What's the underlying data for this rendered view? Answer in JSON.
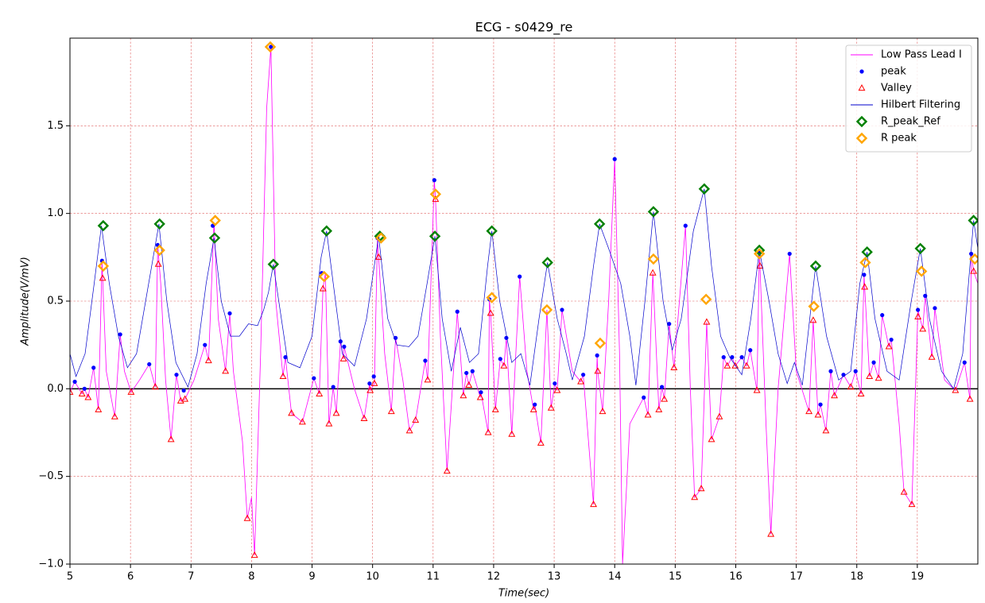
{
  "chart_data": {
    "type": "line",
    "title": "ECG - s0429_re",
    "x_label": "Time(sec)",
    "y_label": "Amplitude(V/mV)",
    "xlim": [
      5,
      20
    ],
    "ylim": [
      -1,
      2
    ],
    "xticks": [
      5,
      6,
      7,
      8,
      9,
      10,
      11,
      12,
      13,
      14,
      15,
      16,
      17,
      18,
      19
    ],
    "yticks": [
      {
        "value": -1,
        "label": "−1.0"
      },
      {
        "value": -0.5,
        "label": "−0.5"
      },
      {
        "value": 0,
        "label": "0.0"
      },
      {
        "value": 0.5,
        "label": "0.5"
      },
      {
        "value": 1,
        "label": "1.0"
      },
      {
        "value": 1.5,
        "label": "1.5"
      }
    ],
    "grid": true,
    "zero_line": true,
    "legend": "upper right",
    "series": [
      {
        "name": "Low Pass Lead I",
        "color": "#ff00ff",
        "style": "line",
        "x": [
          5.0,
          5.08,
          5.2,
          5.24,
          5.3,
          5.39,
          5.47,
          5.53,
          5.54,
          5.6,
          5.74,
          5.83,
          5.9,
          6.01,
          6.15,
          6.31,
          6.41,
          6.45,
          6.5,
          6.58,
          6.67,
          6.76,
          6.83,
          6.9,
          7.05,
          7.23,
          7.29,
          7.38,
          7.45,
          7.57,
          7.64,
          7.7,
          7.85,
          7.93,
          8.0,
          8.05,
          8.15,
          8.25,
          8.32,
          8.4,
          8.52,
          8.56,
          8.66,
          8.84,
          9.03,
          9.12,
          9.18,
          9.22,
          9.28,
          9.35,
          9.4,
          9.47,
          9.52,
          9.53,
          9.7,
          9.86,
          9.95,
          9.96,
          10.03,
          10.08,
          10.1,
          10.2,
          10.31,
          10.38,
          10.5,
          10.61,
          10.71,
          10.87,
          10.91,
          11.02,
          11.04,
          11.12,
          11.23,
          11.4,
          11.5,
          11.55,
          11.59,
          11.65,
          11.78,
          11.79,
          11.91,
          11.93,
          11.95,
          12.03,
          12.11,
          12.17,
          12.21,
          12.3,
          12.43,
          12.55,
          12.66,
          12.68,
          12.78,
          12.88,
          12.95,
          13.01,
          13.05,
          13.13,
          13.3,
          13.44,
          13.48,
          13.65,
          13.71,
          13.72,
          13.8,
          13.9,
          14.0,
          14.08,
          14.13,
          14.25,
          14.48,
          14.55,
          14.63,
          14.73,
          14.78,
          14.82,
          14.9,
          14.98,
          15.17,
          15.25,
          15.32,
          15.43,
          15.52,
          15.6,
          15.73,
          15.8,
          15.86,
          15.94,
          15.99,
          16.1,
          16.18,
          16.24,
          16.35,
          16.39,
          16.4,
          16.5,
          16.58,
          16.7,
          16.89,
          17.0,
          17.21,
          17.28,
          17.36,
          17.4,
          17.49,
          17.57,
          17.63,
          17.78,
          17.9,
          17.98,
          18.07,
          18.12,
          18.13,
          18.21,
          18.28,
          18.36,
          18.42,
          18.53,
          18.57,
          18.7,
          18.78,
          18.91,
          19.01,
          19.09,
          19.13,
          19.24,
          19.29,
          19.45,
          19.63,
          19.78,
          19.87,
          19.89,
          19.93,
          20.0
        ],
        "values": [
          -0.02,
          0.04,
          -0.03,
          0.0,
          -0.05,
          0.12,
          -0.12,
          0.73,
          0.63,
          0.1,
          -0.16,
          0.31,
          0.1,
          -0.02,
          0.05,
          0.14,
          0.01,
          0.82,
          0.6,
          0.05,
          -0.29,
          0.08,
          -0.07,
          -0.06,
          0.05,
          0.25,
          0.16,
          0.95,
          0.4,
          0.1,
          0.43,
          0.1,
          -0.3,
          -0.74,
          -0.62,
          -0.95,
          0.2,
          1.6,
          1.95,
          0.5,
          0.07,
          0.18,
          -0.14,
          -0.19,
          0.06,
          -0.03,
          0.57,
          0.66,
          -0.2,
          0.01,
          -0.14,
          0.27,
          0.17,
          0.24,
          0.0,
          -0.17,
          0.03,
          -0.01,
          0.03,
          0.86,
          0.75,
          0.2,
          -0.13,
          0.29,
          0.05,
          -0.24,
          -0.18,
          0.16,
          0.05,
          1.19,
          1.08,
          0.3,
          -0.47,
          0.44,
          -0.04,
          0.09,
          0.02,
          0.1,
          -0.05,
          -0.02,
          -0.25,
          0.51,
          0.43,
          -0.12,
          0.17,
          0.13,
          0.29,
          -0.26,
          0.64,
          0.1,
          -0.12,
          -0.09,
          -0.31,
          0.45,
          -0.11,
          0.03,
          -0.01,
          0.45,
          0.1,
          0.04,
          0.08,
          -0.66,
          0.19,
          0.1,
          -0.13,
          0.5,
          1.31,
          0.2,
          -1.0,
          -0.2,
          -0.05,
          -0.15,
          0.66,
          -0.12,
          0.01,
          -0.06,
          0.37,
          0.12,
          0.93,
          0.0,
          -0.62,
          -0.57,
          0.38,
          -0.29,
          -0.16,
          0.18,
          0.13,
          0.18,
          0.13,
          0.18,
          0.13,
          0.22,
          -0.01,
          0.78,
          0.7,
          -0.2,
          -0.83,
          0.0,
          0.77,
          0.1,
          -0.13,
          0.39,
          -0.15,
          -0.09,
          -0.24,
          0.1,
          -0.04,
          0.08,
          0.01,
          0.1,
          -0.03,
          0.65,
          0.58,
          0.07,
          0.15,
          0.06,
          0.42,
          0.24,
          0.28,
          -0.2,
          -0.59,
          -0.66,
          0.45,
          0.34,
          0.53,
          0.18,
          0.46,
          0.05,
          -0.01,
          0.15,
          -0.06,
          0.77,
          0.67,
          0.6
        ]
      },
      {
        "name": "peak",
        "color": "#0000ff",
        "style": "scatter",
        "marker": "dot",
        "x": [
          5.08,
          5.24,
          5.39,
          5.53,
          5.83,
          6.31,
          6.45,
          6.76,
          6.88,
          7.23,
          7.36,
          7.64,
          8.32,
          8.56,
          9.03,
          9.16,
          9.35,
          9.47,
          9.53,
          9.95,
          10.02,
          10.08,
          10.38,
          10.87,
          11.02,
          11.4,
          11.55,
          11.65,
          11.79,
          11.93,
          12.11,
          12.21,
          12.43,
          12.68,
          13.01,
          13.13,
          13.48,
          13.71,
          14.0,
          14.48,
          14.78,
          14.9,
          15.17,
          15.8,
          15.94,
          16.1,
          16.24,
          16.39,
          16.89,
          17.4,
          17.57,
          17.78,
          17.98,
          18.12,
          18.28,
          18.42,
          18.57,
          19.01,
          19.13,
          19.29,
          19.78,
          19.89
        ],
        "values": [
          0.04,
          0.0,
          0.12,
          0.73,
          0.31,
          0.14,
          0.82,
          0.08,
          -0.01,
          0.25,
          0.93,
          0.43,
          1.95,
          0.18,
          0.06,
          0.66,
          0.01,
          0.27,
          0.24,
          0.03,
          0.07,
          0.86,
          0.29,
          0.16,
          1.19,
          0.44,
          0.09,
          0.1,
          -0.02,
          0.51,
          0.17,
          0.29,
          0.64,
          -0.09,
          0.03,
          0.45,
          0.08,
          0.19,
          1.31,
          -0.05,
          0.01,
          0.37,
          0.93,
          0.18,
          0.18,
          0.18,
          0.22,
          0.78,
          0.77,
          -0.09,
          0.1,
          0.08,
          0.1,
          0.65,
          0.15,
          0.42,
          0.28,
          0.45,
          0.53,
          0.46,
          0.15,
          0.77
        ]
      },
      {
        "name": "Valley",
        "color": "#ff0000",
        "style": "scatter",
        "marker": "triangle",
        "x": [
          5.0,
          5.2,
          5.3,
          5.47,
          5.54,
          5.74,
          6.01,
          6.41,
          6.46,
          6.67,
          6.83,
          6.9,
          7.29,
          7.57,
          7.93,
          8.05,
          8.52,
          8.66,
          8.84,
          9.12,
          9.18,
          9.28,
          9.4,
          9.52,
          9.86,
          9.96,
          10.03,
          10.1,
          10.31,
          10.61,
          10.71,
          10.91,
          11.04,
          11.23,
          11.5,
          11.59,
          11.78,
          11.91,
          11.95,
          12.03,
          12.17,
          12.3,
          12.66,
          12.78,
          12.95,
          13.05,
          13.44,
          13.65,
          13.72,
          13.8,
          14.55,
          14.63,
          14.73,
          14.82,
          14.98,
          15.32,
          15.43,
          15.52,
          15.6,
          15.73,
          15.86,
          15.99,
          16.18,
          16.35,
          16.4,
          16.58,
          17.21,
          17.28,
          17.36,
          17.49,
          17.63,
          17.9,
          18.07,
          18.13,
          18.21,
          18.36,
          18.53,
          18.78,
          18.91,
          19.01,
          19.09,
          19.24,
          19.63,
          19.87,
          19.93
        ],
        "values": [
          -0.02,
          -0.03,
          -0.05,
          -0.12,
          0.63,
          -0.16,
          -0.02,
          0.01,
          0.71,
          -0.29,
          -0.07,
          -0.06,
          0.16,
          0.1,
          -0.74,
          -0.95,
          0.07,
          -0.14,
          -0.19,
          -0.03,
          0.57,
          -0.2,
          -0.14,
          0.17,
          -0.17,
          -0.01,
          0.03,
          0.75,
          -0.13,
          -0.24,
          -0.18,
          0.05,
          1.08,
          -0.47,
          -0.04,
          0.02,
          -0.05,
          -0.25,
          0.43,
          -0.12,
          0.13,
          -0.26,
          -0.12,
          -0.31,
          -0.11,
          -0.01,
          0.04,
          -0.66,
          0.1,
          -0.13,
          -0.15,
          0.66,
          -0.12,
          -0.06,
          0.12,
          -0.62,
          -0.57,
          0.38,
          -0.29,
          -0.16,
          0.13,
          0.13,
          0.13,
          -0.01,
          0.7,
          -0.83,
          -0.13,
          0.39,
          -0.15,
          -0.24,
          -0.04,
          0.01,
          -0.03,
          0.58,
          0.07,
          0.06,
          0.24,
          -0.59,
          -0.66,
          0.41,
          0.34,
          0.18,
          -0.01,
          -0.06,
          0.67
        ]
      },
      {
        "name": "Hilbert Filtering",
        "color": "#0000cc",
        "style": "line",
        "x": [
          5.0,
          5.1,
          5.25,
          5.4,
          5.52,
          5.65,
          5.8,
          5.95,
          6.1,
          6.3,
          6.47,
          6.6,
          6.75,
          6.95,
          7.1,
          7.25,
          7.38,
          7.5,
          7.65,
          7.8,
          7.95,
          8.1,
          8.2,
          8.28,
          8.36,
          8.45,
          8.6,
          8.8,
          9.0,
          9.15,
          9.24,
          9.35,
          9.5,
          9.7,
          9.9,
          10.1,
          10.25,
          10.4,
          10.6,
          10.75,
          10.9,
          11.03,
          11.15,
          11.3,
          11.45,
          11.6,
          11.75,
          11.9,
          11.97,
          12.1,
          12.3,
          12.45,
          12.6,
          12.75,
          12.89,
          13.05,
          13.2,
          13.3,
          13.5,
          13.65,
          13.75,
          13.9,
          14.1,
          14.25,
          14.35,
          14.5,
          14.64,
          14.8,
          14.95,
          15.1,
          15.3,
          15.48,
          15.6,
          15.75,
          15.9,
          16.1,
          16.25,
          16.39,
          16.55,
          16.7,
          16.85,
          16.97,
          17.1,
          17.32,
          17.5,
          17.7,
          17.9,
          18.05,
          18.17,
          18.3,
          18.5,
          18.7,
          18.9,
          19.05,
          19.2,
          19.4,
          19.6,
          19.75,
          19.93,
          20.0
        ],
        "values": [
          0.2,
          0.07,
          0.2,
          0.6,
          0.93,
          0.6,
          0.3,
          0.12,
          0.2,
          0.6,
          0.94,
          0.5,
          0.15,
          0.01,
          0.2,
          0.6,
          0.86,
          0.5,
          0.3,
          0.3,
          0.37,
          0.36,
          0.45,
          0.55,
          0.71,
          0.5,
          0.15,
          0.12,
          0.3,
          0.75,
          0.9,
          0.6,
          0.2,
          0.13,
          0.4,
          0.87,
          0.4,
          0.25,
          0.24,
          0.3,
          0.6,
          0.87,
          0.4,
          0.1,
          0.35,
          0.15,
          0.2,
          0.7,
          0.9,
          0.5,
          0.15,
          0.2,
          0.02,
          0.4,
          0.72,
          0.4,
          0.2,
          0.05,
          0.3,
          0.7,
          0.94,
          0.8,
          0.6,
          0.3,
          0.02,
          0.5,
          1.01,
          0.5,
          0.22,
          0.4,
          0.9,
          1.14,
          0.7,
          0.3,
          0.18,
          0.08,
          0.4,
          0.79,
          0.5,
          0.2,
          0.03,
          0.15,
          0.02,
          0.7,
          0.3,
          0.05,
          0.1,
          0.6,
          0.78,
          0.4,
          0.1,
          0.05,
          0.5,
          0.8,
          0.4,
          0.1,
          0.0,
          0.2,
          0.96,
          0.8
        ]
      },
      {
        "name": "R_peak_Ref",
        "color": "#008000",
        "style": "scatter",
        "marker": "diamond",
        "x": [
          5.55,
          6.48,
          7.39,
          8.36,
          9.24,
          10.12,
          11.03,
          11.97,
          12.89,
          13.75,
          14.64,
          15.48,
          16.39,
          17.32,
          18.17,
          19.05,
          19.93
        ],
        "values": [
          0.93,
          0.94,
          0.86,
          0.71,
          0.9,
          0.87,
          0.87,
          0.9,
          0.72,
          0.94,
          1.01,
          1.14,
          0.79,
          0.7,
          0.78,
          0.8,
          0.96
        ]
      },
      {
        "name": "R peak",
        "color": "#ffa500",
        "style": "scatter",
        "marker": "diamond",
        "x": [
          5.55,
          6.48,
          7.4,
          8.31,
          9.2,
          10.14,
          11.04,
          11.97,
          12.88,
          13.76,
          14.64,
          15.51,
          16.39,
          17.29,
          18.14,
          19.07,
          19.95
        ],
        "values": [
          0.7,
          0.79,
          0.96,
          1.95,
          0.64,
          0.86,
          1.11,
          0.52,
          0.45,
          0.26,
          0.74,
          0.51,
          0.77,
          0.47,
          0.72,
          0.67,
          0.74
        ]
      }
    ]
  }
}
